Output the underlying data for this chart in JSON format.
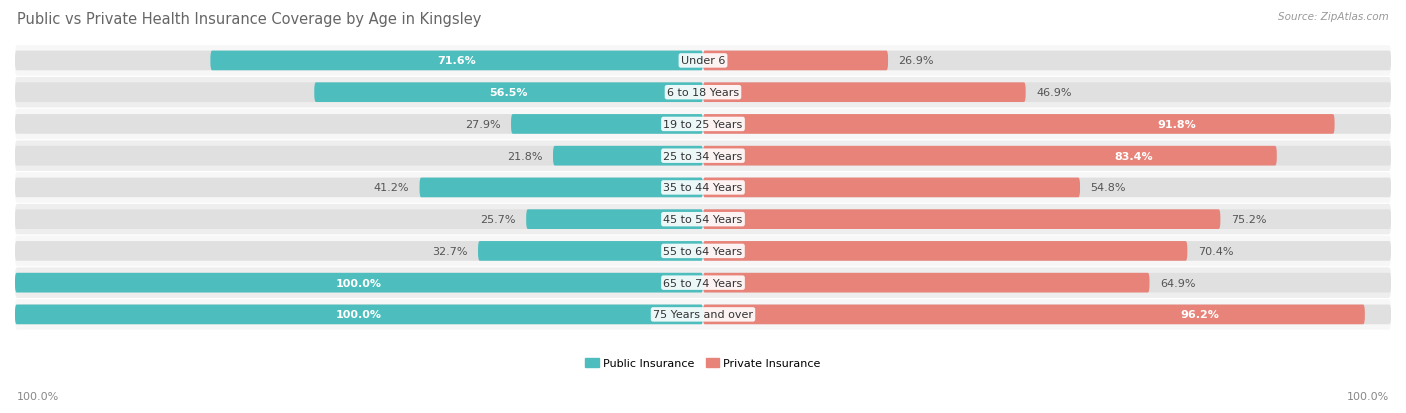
{
  "title": "Public vs Private Health Insurance Coverage by Age in Kingsley",
  "source": "Source: ZipAtlas.com",
  "categories": [
    "Under 6",
    "6 to 18 Years",
    "19 to 25 Years",
    "25 to 34 Years",
    "35 to 44 Years",
    "45 to 54 Years",
    "55 to 64 Years",
    "65 to 74 Years",
    "75 Years and over"
  ],
  "public_values": [
    71.6,
    56.5,
    27.9,
    21.8,
    41.2,
    25.7,
    32.7,
    100.0,
    100.0
  ],
  "private_values": [
    26.9,
    46.9,
    91.8,
    83.4,
    54.8,
    75.2,
    70.4,
    64.9,
    96.2
  ],
  "public_color": "#4dbdbd",
  "private_color": "#e8837a",
  "public_label": "Public Insurance",
  "private_label": "Private Insurance",
  "bar_bg_color": "#e0e0e0",
  "row_bg_even": "#f7f7f7",
  "row_bg_odd": "#eeeeee",
  "title_fontsize": 10.5,
  "label_fontsize": 8.0,
  "value_fontsize": 8.0,
  "source_fontsize": 7.5,
  "axis_label": "100.0%",
  "max_value": 100.0
}
